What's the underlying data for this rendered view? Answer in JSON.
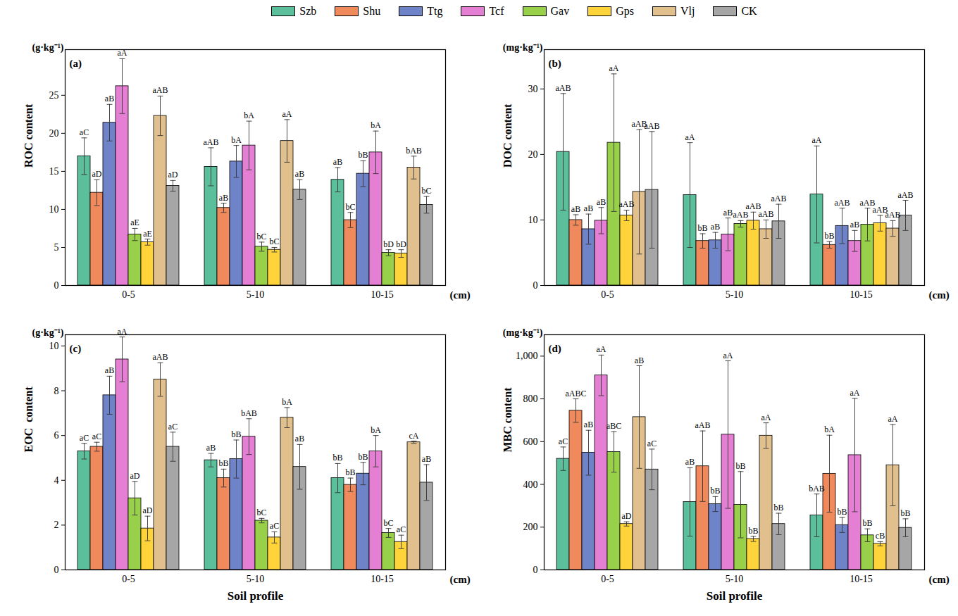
{
  "chart_data": [
    {
      "type": "bar",
      "title": "(a)",
      "y_label": "ROC content",
      "y_unit": "(g·kg⁻¹)",
      "x_unit": "(cm)",
      "legend": "top",
      "categories": [
        "0-5",
        "5-10",
        "10-15"
      ],
      "ylim": [
        0,
        31
      ],
      "yticks": [
        0,
        5,
        10,
        15,
        20,
        25
      ],
      "series": [
        {
          "name": "Szb",
          "color": "#5cbf9b",
          "values": [
            17.0,
            15.6,
            13.9
          ],
          "errors": [
            2.4,
            2.5,
            1.6
          ],
          "letters": [
            "aC",
            "aAB",
            "aB"
          ]
        },
        {
          "name": "Shu",
          "color": "#f08a5d",
          "values": [
            12.2,
            10.2,
            8.6
          ],
          "errors": [
            1.7,
            0.6,
            1.0
          ],
          "letters": [
            "aD",
            "aB",
            "bC"
          ]
        },
        {
          "name": "Ttg",
          "color": "#6f83c9",
          "values": [
            21.4,
            16.3,
            14.7
          ],
          "errors": [
            2.4,
            2.1,
            1.7
          ],
          "letters": [
            "aB",
            "bA",
            "bB"
          ]
        },
        {
          "name": "Tcf",
          "color": "#e57fd3",
          "values": [
            26.2,
            18.4,
            17.5
          ],
          "errors": [
            3.6,
            3.2,
            2.8
          ],
          "letters": [
            "aA",
            "bA",
            "bA"
          ]
        },
        {
          "name": "Gav",
          "color": "#99d04a",
          "values": [
            6.7,
            5.1,
            4.3
          ],
          "errors": [
            0.8,
            0.6,
            0.4
          ],
          "letters": [
            "aE",
            "bC",
            "bD"
          ]
        },
        {
          "name": "Gps",
          "color": "#ffd43b",
          "values": [
            5.7,
            4.7,
            4.2
          ],
          "errors": [
            0.4,
            0.3,
            0.5
          ],
          "letters": [
            "aE",
            "bC",
            "bD"
          ]
        },
        {
          "name": "Vlj",
          "color": "#e2c08d",
          "values": [
            22.3,
            19.0,
            15.5
          ],
          "errors": [
            2.6,
            2.8,
            1.5
          ],
          "letters": [
            "aAB",
            "aA",
            "bAB"
          ]
        },
        {
          "name": "CK",
          "color": "#a6a6a6",
          "values": [
            13.1,
            12.6,
            10.6
          ],
          "errors": [
            0.7,
            1.3,
            1.1
          ],
          "letters": [
            "aD",
            "aB",
            "bC"
          ]
        }
      ]
    },
    {
      "type": "bar",
      "title": "(b)",
      "y_label": "DOC content",
      "y_unit": "(mg·kg⁻¹)",
      "x_unit": "(cm)",
      "categories": [
        "0-5",
        "5-10",
        "10-15"
      ],
      "ylim": [
        0,
        36
      ],
      "yticks": [
        0,
        10,
        20,
        30
      ],
      "series": [
        {
          "name": "Szb",
          "color": "#5cbf9b",
          "values": [
            20.4,
            13.8,
            13.9
          ],
          "errors": [
            8.9,
            8.0,
            7.4
          ],
          "letters": [
            "aAB",
            "aA",
            "aA"
          ]
        },
        {
          "name": "Shu",
          "color": "#f08a5d",
          "values": [
            10.0,
            6.8,
            6.2
          ],
          "errors": [
            0.8,
            1.1,
            0.5
          ],
          "letters": [
            "aB",
            "bB",
            "bB"
          ]
        },
        {
          "name": "Ttg",
          "color": "#6f83c9",
          "values": [
            8.6,
            6.9,
            9.1
          ],
          "errors": [
            2.3,
            1.2,
            2.7
          ],
          "letters": [
            "aB",
            "aB",
            "aAB"
          ]
        },
        {
          "name": "Tcf",
          "color": "#e57fd3",
          "values": [
            9.9,
            7.8,
            6.8
          ],
          "errors": [
            2.0,
            2.5,
            1.6
          ],
          "letters": [
            "aB",
            "aB",
            "aB"
          ]
        },
        {
          "name": "Gav",
          "color": "#99d04a",
          "values": [
            21.8,
            9.4,
            9.3
          ],
          "errors": [
            10.5,
            0.5,
            2.5
          ],
          "letters": [
            "aA",
            "aAB",
            "aAB"
          ]
        },
        {
          "name": "Gps",
          "color": "#ffd43b",
          "values": [
            10.7,
            9.9,
            9.5
          ],
          "errors": [
            0.8,
            1.3,
            1.2
          ],
          "letters": [
            "aAB",
            "aAB",
            "aAB"
          ]
        },
        {
          "name": "Vlj",
          "color": "#e2c08d",
          "values": [
            14.3,
            8.6,
            8.7
          ],
          "errors": [
            9.5,
            1.4,
            1.2
          ],
          "letters": [
            "aAB",
            "aAB",
            "aAB"
          ]
        },
        {
          "name": "CK",
          "color": "#a6a6a6",
          "values": [
            14.6,
            9.8,
            10.7
          ],
          "errors": [
            8.9,
            2.6,
            2.3
          ],
          "letters": [
            "aAB",
            "aAB",
            "aAB"
          ]
        }
      ]
    },
    {
      "type": "bar",
      "title": "(c)",
      "y_label": "EOC  content",
      "y_unit": "(g·kg⁻¹)",
      "x_unit": "(cm)",
      "x_label": "Soil profile",
      "categories": [
        "0-5",
        "5-10",
        "10-15"
      ],
      "ylim": [
        0,
        10.5
      ],
      "yticks": [
        0,
        2,
        4,
        6,
        8,
        10
      ],
      "series": [
        {
          "name": "Szb",
          "color": "#5cbf9b",
          "values": [
            5.3,
            4.9,
            4.1
          ],
          "errors": [
            0.35,
            0.3,
            0.65
          ],
          "letters": [
            "aC",
            "aB",
            "bB"
          ]
        },
        {
          "name": "Shu",
          "color": "#f08a5d",
          "values": [
            5.5,
            4.1,
            3.8
          ],
          "errors": [
            0.2,
            0.4,
            0.3
          ],
          "letters": [
            "aC",
            "bB",
            "bB"
          ]
        },
        {
          "name": "Ttg",
          "color": "#6f83c9",
          "values": [
            7.8,
            4.95,
            4.3
          ],
          "errors": [
            0.85,
            0.85,
            0.5
          ],
          "letters": [
            "aB",
            "bB",
            "bB"
          ]
        },
        {
          "name": "Tcf",
          "color": "#e57fd3",
          "values": [
            9.4,
            5.95,
            5.3
          ],
          "errors": [
            1.0,
            0.8,
            0.7
          ],
          "letters": [
            "aA",
            "bAB",
            "bA"
          ]
        },
        {
          "name": "Gav",
          "color": "#99d04a",
          "values": [
            3.2,
            2.2,
            1.65
          ],
          "errors": [
            0.75,
            0.1,
            0.2
          ],
          "letters": [
            "aD",
            "bC",
            "bC"
          ]
        },
        {
          "name": "Gps",
          "color": "#ffd43b",
          "values": [
            1.85,
            1.45,
            1.25
          ],
          "errors": [
            0.55,
            0.25,
            0.3
          ],
          "letters": [
            "aD",
            "aC",
            "aC"
          ]
        },
        {
          "name": "Vlj",
          "color": "#e2c08d",
          "values": [
            8.5,
            6.8,
            5.7
          ],
          "errors": [
            0.75,
            0.45,
            0.05
          ],
          "letters": [
            "aAB",
            "bA",
            "cA"
          ]
        },
        {
          "name": "CK",
          "color": "#a6a6a6",
          "values": [
            5.5,
            4.6,
            3.9
          ],
          "errors": [
            0.65,
            1.0,
            0.8
          ],
          "letters": [
            "aC",
            "aB",
            "aB"
          ]
        }
      ]
    },
    {
      "type": "bar",
      "title": "(d)",
      "y_label": "MBC content",
      "y_unit": "(mg·kg⁻¹)",
      "x_unit": "(cm)",
      "x_label": "Soil profile",
      "categories": [
        "0-5",
        "5-10",
        "10-15"
      ],
      "ylim": [
        0,
        1100
      ],
      "yticks": [
        0,
        200,
        400,
        600,
        800,
        1000
      ],
      "series": [
        {
          "name": "Szb",
          "color": "#5cbf9b",
          "values": [
            520,
            318,
            255
          ],
          "errors": [
            55,
            160,
            100
          ],
          "letters": [
            "aC",
            "aB",
            "bAB"
          ]
        },
        {
          "name": "Shu",
          "color": "#f08a5d",
          "values": [
            745,
            485,
            450
          ],
          "errors": [
            55,
            165,
            180
          ],
          "letters": [
            "aABC",
            "aAB",
            "bA"
          ]
        },
        {
          "name": "Ttg",
          "color": "#6f83c9",
          "values": [
            548,
            308,
            210
          ],
          "errors": [
            105,
            35,
            35
          ],
          "letters": [
            "aB",
            "bB",
            "bB"
          ]
        },
        {
          "name": "Tcf",
          "color": "#e57fd3",
          "values": [
            910,
            633,
            537
          ],
          "errors": [
            95,
            345,
            265
          ],
          "letters": [
            "aA",
            "aA",
            "aA"
          ]
        },
        {
          "name": "Gav",
          "color": "#99d04a",
          "values": [
            552,
            305,
            162
          ],
          "errors": [
            95,
            155,
            30
          ],
          "letters": [
            "aBC",
            "bB",
            "bB"
          ]
        },
        {
          "name": "Gps",
          "color": "#ffd43b",
          "values": [
            215,
            145,
            122
          ],
          "errors": [
            10,
            12,
            10
          ],
          "letters": [
            "aD",
            "bB",
            "cB"
          ]
        },
        {
          "name": "Vlj",
          "color": "#e2c08d",
          "values": [
            715,
            628,
            490
          ],
          "errors": [
            240,
            60,
            190
          ],
          "letters": [
            "aB",
            "aA",
            "aA"
          ]
        },
        {
          "name": "CK",
          "color": "#a6a6a6",
          "values": [
            470,
            215,
            197
          ],
          "errors": [
            95,
            50,
            42
          ],
          "letters": [
            "aC",
            "bB",
            "bB"
          ]
        }
      ]
    }
  ]
}
